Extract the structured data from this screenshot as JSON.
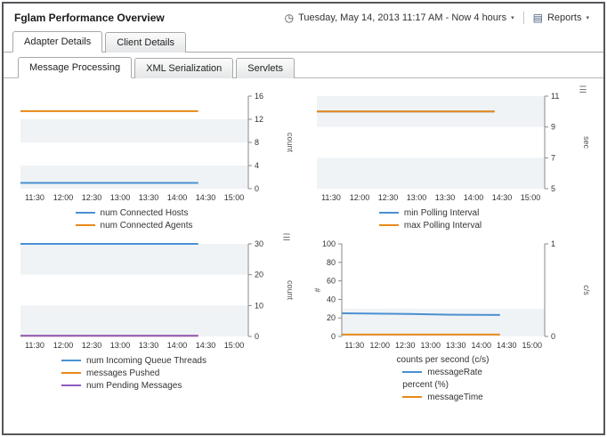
{
  "window": {
    "title": "Fglam Performance Overview"
  },
  "toolbar": {
    "time_range": "Tuesday, May 14, 2013 11:17 AM - Now 4 hours",
    "reports_label": "Reports"
  },
  "icons": {
    "clock": "◷",
    "caret": "▾",
    "reports": "▤",
    "chart_menu": "☰"
  },
  "tabs": [
    {
      "label": "Adapter Details",
      "active": true
    },
    {
      "label": "Client Details",
      "active": false
    }
  ],
  "subtabs": [
    {
      "label": "Message Processing",
      "active": true
    },
    {
      "label": "XML Serialization",
      "active": false
    },
    {
      "label": "Servlets",
      "active": false
    }
  ],
  "colors": {
    "blue": "#4a90d2",
    "orange": "#e8891a",
    "purple": "#8e5bbf",
    "stripe": "#f0f3f6",
    "axis": "#8a8a8a"
  },
  "chart_data": [
    {
      "type": "line",
      "x_ticks": [
        "11:30",
        "12:00",
        "12:30",
        "13:00",
        "13:30",
        "14:00",
        "14:30",
        "15:00"
      ],
      "axis_right": {
        "label": "count",
        "min": 0,
        "max": 16,
        "ticks": [
          0,
          4,
          8,
          12,
          16
        ]
      },
      "series": [
        {
          "name": "num Connected Hosts",
          "color": "#4a90d2",
          "values": [
            1,
            1
          ]
        },
        {
          "name": "num Connected Agents",
          "color": "#e8891a",
          "values": [
            13.4,
            13.4
          ]
        }
      ],
      "menu_icon": false,
      "data_span": 0.78
    },
    {
      "type": "line",
      "x_ticks": [
        "11:30",
        "12:00",
        "12:30",
        "13:00",
        "13:30",
        "14:00",
        "14:30",
        "15:00"
      ],
      "axis_right": {
        "label": "sec",
        "min": 5,
        "max": 11,
        "ticks": [
          5,
          7,
          9,
          11
        ]
      },
      "series": [
        {
          "name": "min Polling Interval",
          "color": "#4a90d2",
          "values": [
            10,
            10
          ]
        },
        {
          "name": "max Polling Interval",
          "color": "#e8891a",
          "values": [
            10,
            10
          ]
        }
      ],
      "menu_icon": true,
      "data_span": 0.78
    },
    {
      "type": "line",
      "x_ticks": [
        "11:30",
        "12:00",
        "12:30",
        "13:00",
        "13:30",
        "14:00",
        "14:30",
        "15:00"
      ],
      "axis_right": {
        "label": "count",
        "min": 0,
        "max": 30,
        "ticks": [
          0,
          10,
          20,
          30
        ]
      },
      "series": [
        {
          "name": "num Incoming Queue Threads",
          "color": "#4a90d2",
          "values": [
            30,
            30
          ]
        },
        {
          "name": "messages Pushed",
          "color": "#e8891a",
          "values": [
            0.2,
            0.2
          ]
        },
        {
          "name": "num Pending Messages",
          "color": "#8e5bbf",
          "values": [
            0.2,
            0.2
          ]
        }
      ],
      "menu_icon": true,
      "data_span": 0.78
    },
    {
      "type": "line",
      "x_ticks": [
        "11:30",
        "12:00",
        "12:30",
        "13:00",
        "13:30",
        "14:00",
        "14:30",
        "15:00"
      ],
      "axis_left": {
        "label": "#",
        "min": 0,
        "max": 100,
        "ticks": [
          0,
          20,
          40,
          60,
          80,
          100
        ]
      },
      "axis_right": {
        "label": "c/s",
        "min": 0,
        "max": 1,
        "ticks": [
          0,
          1
        ]
      },
      "xlabel": "counts per second (c/s)",
      "gray_bands": [
        [
          0,
          30
        ]
      ],
      "series": [
        {
          "name": "messageRate",
          "color": "#4a90d2",
          "axis": "left",
          "values": [
            25,
            24.8,
            24.5,
            24.2,
            23.8,
            23.5,
            23.3,
            23.2
          ]
        },
        {
          "name": "messageTime",
          "color": "#e8891a",
          "axis": "right",
          "values": [
            0.02,
            0.02
          ]
        }
      ],
      "legend": [
        {
          "label": "messageRate",
          "color": "#4a90d2"
        },
        {
          "label": "percent (%)"
        },
        {
          "label": "messageTime",
          "color": "#e8891a"
        }
      ],
      "menu_icon": false,
      "data_span": 0.78
    }
  ]
}
